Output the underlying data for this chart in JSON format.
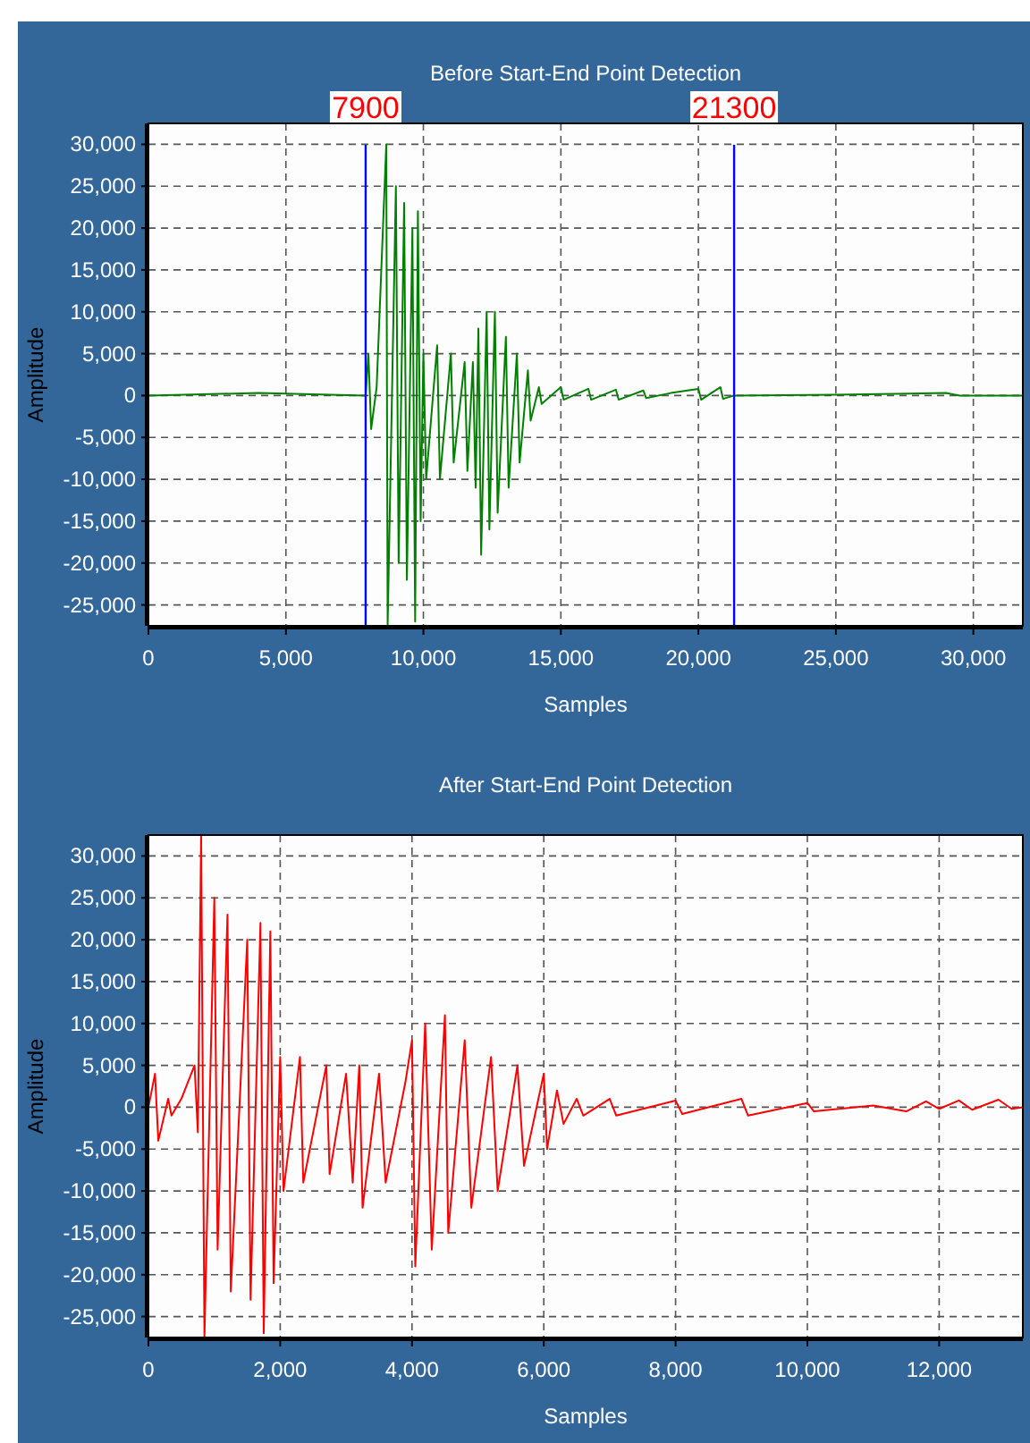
{
  "chart_data": [
    {
      "type": "line",
      "title": "Before Start-End Point Detection",
      "xlabel": "Samples",
      "ylabel": "Amplitude",
      "xlim": [
        0,
        31800
      ],
      "xticks": [
        0,
        {
          "value": 5000,
          "label": "5,000"
        },
        {
          "value": 10000,
          "label": "10,000"
        },
        {
          "value": 15000,
          "label": "15,000"
        },
        {
          "value": 20000,
          "label": "20,000"
        },
        {
          "value": 25000,
          "label": "25,000"
        },
        {
          "value": 30000,
          "label": "30,000"
        }
      ],
      "ylim": [
        -27500,
        32500
      ],
      "yticks": [
        {
          "value": -25000,
          "label": "-25,000"
        },
        {
          "value": -20000,
          "label": "-20,000"
        },
        {
          "value": -15000,
          "label": "-15,000"
        },
        {
          "value": -10000,
          "label": "-10,000"
        },
        {
          "value": -5000,
          "label": "-5,000"
        },
        0,
        {
          "value": 5000,
          "label": "5,000"
        },
        {
          "value": 10000,
          "label": "10,000"
        },
        {
          "value": 15000,
          "label": "15,000"
        },
        {
          "value": 20000,
          "label": "20,000"
        },
        {
          "value": 25000,
          "label": "25,000"
        },
        {
          "value": 30000,
          "label": "30,000"
        }
      ],
      "grid": true,
      "ref_lines": [
        {
          "axis": "x",
          "value": 7900,
          "label": "7900",
          "color": "#0000ff"
        },
        {
          "axis": "x",
          "value": 21300,
          "label": "21300",
          "color": "#0000ff"
        }
      ],
      "series": [
        {
          "color": "#008000",
          "x": [
            0,
            4000,
            7900,
            8000,
            8100,
            8300,
            8650,
            8700,
            9000,
            9100,
            9300,
            9400,
            9600,
            9700,
            9800,
            9900,
            10000,
            10100,
            10500,
            10600,
            11000,
            11100,
            11500,
            11600,
            11800,
            11900,
            12000,
            12100,
            12300,
            12400,
            12600,
            12700,
            13000,
            13100,
            13400,
            13500,
            13800,
            13900,
            14200,
            14300,
            15000,
            15100,
            16000,
            16100,
            17000,
            17100,
            18000,
            18100,
            19000,
            20000,
            20100,
            20800,
            20900,
            21300,
            25000,
            29000,
            29500,
            31800
          ],
          "values": [
            0,
            300,
            0,
            5000,
            -4000,
            1000,
            30000,
            -27500,
            25000,
            -20000,
            23000,
            -22000,
            20000,
            -27000,
            22000,
            -15000,
            5000,
            -10000,
            6000,
            -10000,
            5000,
            -8000,
            4000,
            -9000,
            4000,
            -11000,
            8000,
            -19000,
            10000,
            -16000,
            10000,
            -14000,
            7000,
            -11000,
            5000,
            -8000,
            3000,
            -3000,
            1000,
            -1000,
            1000,
            -500,
            800,
            -500,
            700,
            -500,
            600,
            -300,
            300,
            800,
            -500,
            1000,
            -400,
            0,
            100,
            300,
            0,
            0
          ]
        }
      ]
    },
    {
      "type": "line",
      "title": "After Start-End Point Detection",
      "xlabel": "Samples",
      "ylabel": "Amplitude",
      "xlim": [
        0,
        13270
      ],
      "xticks": [
        0,
        {
          "value": 2000,
          "label": "2,000"
        },
        {
          "value": 4000,
          "label": "4,000"
        },
        {
          "value": 6000,
          "label": "6,000"
        },
        {
          "value": 8000,
          "label": "8,000"
        },
        {
          "value": 10000,
          "label": "10,000"
        },
        {
          "value": 12000,
          "label": "12,000"
        }
      ],
      "ylim": [
        -27500,
        32500
      ],
      "yticks": [
        {
          "value": -25000,
          "label": "-25,000"
        },
        {
          "value": -20000,
          "label": "-20,000"
        },
        {
          "value": -15000,
          "label": "-15,000"
        },
        {
          "value": -10000,
          "label": "-10,000"
        },
        {
          "value": -5000,
          "label": "-5,000"
        },
        0,
        {
          "value": 5000,
          "label": "5,000"
        },
        {
          "value": 10000,
          "label": "10,000"
        },
        {
          "value": 15000,
          "label": "15,000"
        },
        {
          "value": 20000,
          "label": "20,000"
        },
        {
          "value": 25000,
          "label": "25,000"
        },
        {
          "value": 30000,
          "label": "30,000"
        }
      ],
      "grid": true,
      "series": [
        {
          "color": "#ff0000",
          "x": [
            0,
            100,
            150,
            300,
            350,
            500,
            700,
            750,
            800,
            850,
            1000,
            1050,
            1200,
            1250,
            1500,
            1550,
            1700,
            1750,
            1850,
            1900,
            2000,
            2050,
            2300,
            2350,
            2700,
            2750,
            3000,
            3100,
            3200,
            3250,
            3500,
            3600,
            3900,
            4000,
            4050,
            4200,
            4300,
            4500,
            4550,
            4800,
            4900,
            5200,
            5300,
            5600,
            5700,
            6000,
            6050,
            6200,
            6300,
            6500,
            6600,
            7000,
            7100,
            8000,
            8100,
            9000,
            9100,
            10000,
            10100,
            11000,
            11500,
            11800,
            12000,
            12300,
            12500,
            12900,
            13100,
            13270
          ],
          "values": [
            0,
            4000,
            -4000,
            1000,
            -1000,
            1000,
            5000,
            -3000,
            32500,
            -27500,
            25000,
            -17000,
            23000,
            -22000,
            20000,
            -23000,
            22000,
            -27000,
            21000,
            -21000,
            6000,
            -10000,
            6000,
            -9000,
            5000,
            -8000,
            4000,
            -9000,
            5000,
            -12000,
            4000,
            -9000,
            3000,
            8000,
            -19000,
            10000,
            -17000,
            11000,
            -15000,
            8000,
            -12000,
            6000,
            -10000,
            5000,
            -7000,
            4000,
            -5000,
            2000,
            -2000,
            1000,
            -1000,
            1000,
            -1000,
            800,
            -800,
            1000,
            -1000,
            500,
            -500,
            200,
            -500,
            700,
            -200,
            800,
            -300,
            900,
            -200,
            0
          ]
        }
      ]
    }
  ]
}
